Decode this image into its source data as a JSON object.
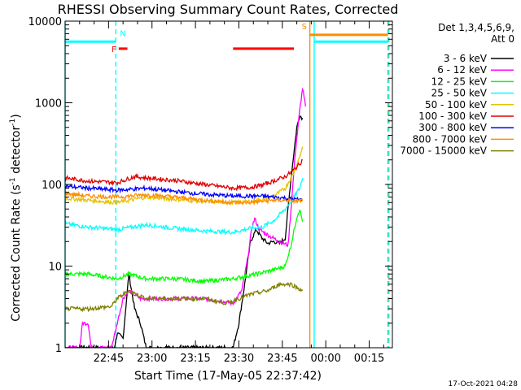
{
  "chart_data": {
    "type": "line",
    "title": "RHESSI Observing Summary Count Rates, Corrected",
    "xlabel": "Start Time (17-May-05 22:37:42)",
    "ylabel": "Corrected Count Rate (s",
    "ylabel_sup1": "-1",
    "ylabel_mid": " detector",
    "ylabel_sup2": "-1",
    "ylabel_end": ")",
    "yscale": "log",
    "ylim": [
      1,
      10000
    ],
    "xlim_min": [
      -8,
      105
    ],
    "x_ticks": [
      {
        "t": 7,
        "label": "22:45"
      },
      {
        "t": 22,
        "label": "23:00"
      },
      {
        "t": 37,
        "label": "23:15"
      },
      {
        "t": 52,
        "label": "23:30"
      },
      {
        "t": 67,
        "label": "23:45"
      },
      {
        "t": 82,
        "label": "00:00"
      },
      {
        "t": 97,
        "label": "00:15"
      }
    ],
    "y_ticks": [
      {
        "v": 1,
        "label": "1"
      },
      {
        "v": 10,
        "label": "10"
      },
      {
        "v": 100,
        "label": "100"
      },
      {
        "v": 1000,
        "label": "1000"
      },
      {
        "v": 10000,
        "label": "10000"
      }
    ],
    "legend": {
      "header1": "Det 1,3,4,5,6,9,",
      "header2": "Att 0",
      "position": "top-right"
    },
    "series": [
      {
        "name": "3 - 6 keV",
        "color": "#000000",
        "points": [
          [
            -8,
            1
          ],
          [
            9,
            1
          ],
          [
            10,
            1.5
          ],
          [
            12,
            1.3
          ],
          [
            14,
            8
          ],
          [
            16,
            3
          ],
          [
            18,
            2
          ],
          [
            20,
            1
          ],
          [
            30,
            1
          ],
          [
            40,
            1
          ],
          [
            50,
            1
          ],
          [
            52,
            2
          ],
          [
            54,
            6
          ],
          [
            56,
            20
          ],
          [
            58,
            28
          ],
          [
            60,
            22
          ],
          [
            62,
            19
          ],
          [
            64,
            20
          ],
          [
            66,
            19
          ],
          [
            68,
            22
          ],
          [
            70,
            120
          ],
          [
            72,
            500
          ],
          [
            73,
            700
          ],
          [
            74,
            650
          ]
        ]
      },
      {
        "name": "6 - 12 keV",
        "color": "#ff00ff",
        "points": [
          [
            -8,
            1
          ],
          [
            -3,
            1
          ],
          [
            -2,
            2
          ],
          [
            0,
            2
          ],
          [
            1,
            1
          ],
          [
            8,
            1
          ],
          [
            12,
            4
          ],
          [
            14,
            5
          ],
          [
            18,
            4
          ],
          [
            30,
            4
          ],
          [
            40,
            4
          ],
          [
            50,
            3.5
          ],
          [
            53,
            5
          ],
          [
            55,
            12
          ],
          [
            56.5,
            30
          ],
          [
            57.5,
            38
          ],
          [
            59,
            28
          ],
          [
            62,
            24
          ],
          [
            66,
            20
          ],
          [
            69,
            18
          ],
          [
            70,
            50
          ],
          [
            71.5,
            250
          ],
          [
            73,
            800
          ],
          [
            74,
            1500
          ],
          [
            75,
            900
          ]
        ]
      },
      {
        "name": "12 - 25 keV",
        "color": "#00ff00",
        "points": [
          [
            -8,
            8
          ],
          [
            0,
            8
          ],
          [
            10,
            7
          ],
          [
            14,
            8
          ],
          [
            20,
            7
          ],
          [
            30,
            7
          ],
          [
            40,
            6.5
          ],
          [
            50,
            7
          ],
          [
            58,
            8
          ],
          [
            64,
            9
          ],
          [
            68,
            10
          ],
          [
            70,
            18
          ],
          [
            72,
            40
          ],
          [
            73,
            50
          ],
          [
            74,
            35
          ]
        ]
      },
      {
        "name": "25 - 50 keV",
        "color": "#00ffff",
        "points": [
          [
            -8,
            33
          ],
          [
            0,
            30
          ],
          [
            10,
            28
          ],
          [
            20,
            32
          ],
          [
            30,
            29
          ],
          [
            40,
            27
          ],
          [
            50,
            26
          ],
          [
            56,
            29
          ],
          [
            60,
            30
          ],
          [
            64,
            36
          ],
          [
            68,
            50
          ],
          [
            71,
            70
          ],
          [
            73,
            90
          ],
          [
            74,
            120
          ]
        ]
      },
      {
        "name": "50 - 100 keV",
        "color": "#e6c200",
        "points": [
          [
            -8,
            68
          ],
          [
            0,
            64
          ],
          [
            10,
            60
          ],
          [
            20,
            70
          ],
          [
            30,
            66
          ],
          [
            40,
            62
          ],
          [
            50,
            60
          ],
          [
            56,
            62
          ],
          [
            60,
            66
          ],
          [
            64,
            72
          ],
          [
            68,
            90
          ],
          [
            71,
            140
          ],
          [
            73,
            220
          ],
          [
            74,
            290
          ]
        ]
      },
      {
        "name": "100 - 300 keV",
        "color": "#e00000",
        "points": [
          [
            -8,
            120
          ],
          [
            0,
            110
          ],
          [
            10,
            105
          ],
          [
            14,
            118
          ],
          [
            16,
            125
          ],
          [
            20,
            120
          ],
          [
            30,
            112
          ],
          [
            40,
            100
          ],
          [
            50,
            90
          ],
          [
            56,
            92
          ],
          [
            60,
            98
          ],
          [
            64,
            110
          ],
          [
            68,
            125
          ],
          [
            71,
            150
          ],
          [
            73,
            180
          ],
          [
            74,
            200
          ]
        ]
      },
      {
        "name": "300 - 800 keV",
        "color": "#0000ff",
        "points": [
          [
            -8,
            95
          ],
          [
            0,
            90
          ],
          [
            10,
            85
          ],
          [
            20,
            90
          ],
          [
            30,
            82
          ],
          [
            40,
            76
          ],
          [
            50,
            72
          ],
          [
            56,
            72
          ],
          [
            60,
            72
          ],
          [
            64,
            70
          ],
          [
            68,
            68
          ],
          [
            71,
            66
          ],
          [
            74,
            65
          ]
        ]
      },
      {
        "name": "800 - 7000 keV",
        "color": "#ff8c00",
        "points": [
          [
            -8,
            78
          ],
          [
            0,
            72
          ],
          [
            10,
            70
          ],
          [
            20,
            75
          ],
          [
            30,
            70
          ],
          [
            40,
            64
          ],
          [
            50,
            60
          ],
          [
            56,
            60
          ],
          [
            60,
            62
          ],
          [
            64,
            64
          ],
          [
            68,
            64
          ],
          [
            71,
            62
          ],
          [
            74,
            63
          ]
        ]
      },
      {
        "name": "7000 - 15000 keV",
        "color": "#808000",
        "points": [
          [
            -8,
            3
          ],
          [
            0,
            3
          ],
          [
            8,
            3.2
          ],
          [
            10,
            4
          ],
          [
            14,
            5
          ],
          [
            20,
            4
          ],
          [
            30,
            4
          ],
          [
            40,
            4
          ],
          [
            48,
            3.5
          ],
          [
            52,
            4
          ],
          [
            56,
            4.5
          ],
          [
            62,
            5
          ],
          [
            66,
            6
          ],
          [
            70,
            6
          ],
          [
            74,
            5
          ]
        ]
      }
    ],
    "flags": [
      {
        "label": "N",
        "color": "#00ffff",
        "y": 5600,
        "t0": -8,
        "t1": 9.5,
        "dash_t": 9.5
      },
      {
        "label": "F",
        "color": "#ff0000",
        "y": 4600,
        "t0": 10.5,
        "t1": 13.5
      },
      {
        "label": "",
        "color": "#ff0000",
        "y": 4600,
        "t0": 50,
        "t1": 71
      },
      {
        "label": "S",
        "color": "#ff8c00",
        "y": 6800,
        "t0": 76.5,
        "t1": 103.5
      },
      {
        "label": "",
        "color": "#00ffff",
        "y": 5600,
        "t0": 78,
        "t1": 103.5
      }
    ],
    "vlines": [
      {
        "t": -8,
        "color": "#00ffff",
        "style": "solid"
      },
      {
        "t": 9.5,
        "color": "#00ffff",
        "style": "dashed"
      },
      {
        "t": 76.5,
        "color": "#ff8c00",
        "style": "solid"
      },
      {
        "t": 78,
        "color": "#00ffff",
        "style": "solid"
      },
      {
        "t": 103.5,
        "color": "#ff8c00",
        "style": "dashed"
      },
      {
        "t": 103.8,
        "color": "#00ffff",
        "style": "dashed"
      }
    ],
    "footer": "17-Oct-2021 04:28"
  }
}
